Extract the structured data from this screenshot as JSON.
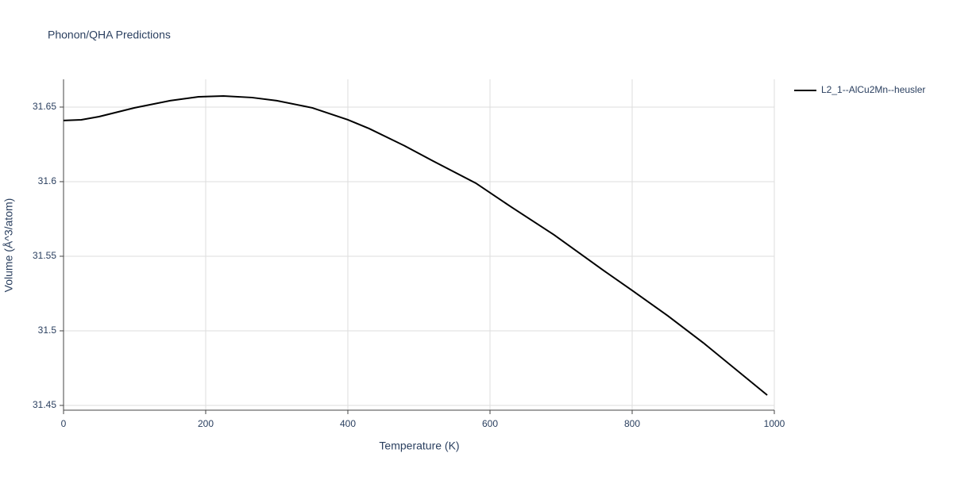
{
  "chart_data": {
    "type": "line",
    "title": "Phonon/QHA Predictions",
    "x_label": "Temperature (K)",
    "y_label": "Volume (Å^3/atom)",
    "x": [
      0,
      25,
      50,
      100,
      150,
      190,
      225,
      265,
      300,
      350,
      400,
      430,
      480,
      520,
      580,
      630,
      690,
      760,
      800,
      850,
      900,
      990
    ],
    "series": [
      {
        "name": "L2_1--AlCu2Mn--heusler",
        "color": "#000000",
        "values": [
          31.641,
          31.6415,
          31.6436,
          31.6495,
          31.6543,
          31.6569,
          31.6574,
          31.6564,
          31.6543,
          31.6495,
          31.6415,
          31.6356,
          31.624,
          31.6138,
          31.599,
          31.583,
          31.5644,
          31.5404,
          31.5271,
          31.5101,
          31.492,
          31.4569
        ]
      }
    ],
    "xlim": [
      0,
      1000
    ],
    "xticks": [
      0,
      200,
      400,
      600,
      800,
      1000
    ],
    "ylim": [
      31.4468,
      31.6686
    ],
    "yticks": [
      31.45,
      31.5,
      31.55,
      31.6,
      31.65
    ],
    "grid": true,
    "legend": "right"
  }
}
